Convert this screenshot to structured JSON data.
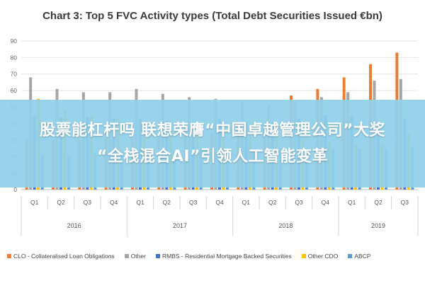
{
  "chart_data": {
    "type": "bar",
    "title": "Chart 3: Top 5 FVC Activity types (Total Debt Securities Issued €bn)",
    "categories": [
      "Q1",
      "Q2",
      "Q3",
      "Q4",
      "Q1",
      "Q2",
      "Q3",
      "Q4",
      "Q1",
      "Q2",
      "Q3",
      "Q4",
      "Q1",
      "Q2",
      "Q3"
    ],
    "groups": [
      {
        "label": "2016",
        "count": 4
      },
      {
        "label": "2017",
        "count": 4
      },
      {
        "label": "2018",
        "count": 4
      },
      {
        "label": "2019",
        "count": 3
      }
    ],
    "ylim": [
      0,
      90
    ],
    "yticks": [
      0,
      10,
      20,
      30,
      40,
      50,
      60,
      70,
      80,
      90
    ],
    "grid": true,
    "legend_position": "bottom",
    "series": [
      {
        "name": "CLO - Collateralised Loan Obligations",
        "color": "#ed7d31",
        "values": [
          30,
          30,
          30,
          31,
          31,
          32,
          33,
          34,
          36,
          38,
          57,
          61,
          68,
          76,
          83
        ]
      },
      {
        "name": "Other",
        "color": "#a5a5a5",
        "values": [
          68,
          61,
          59,
          59,
          61,
          58,
          56,
          55,
          53,
          51,
          53,
          56,
          59,
          66,
          67
        ]
      },
      {
        "name": "RMBS - Residential Mortgage Backed Securities",
        "color": "#4472c4",
        "values": [
          45,
          44,
          44,
          43,
          43,
          42,
          41,
          43,
          41,
          41,
          43,
          45,
          45,
          41,
          43
        ]
      },
      {
        "name": "Other CDO",
        "color": "#ffc000",
        "values": [
          55,
          48,
          45,
          43,
          41,
          38,
          35,
          34,
          33,
          32,
          30,
          29,
          27,
          28,
          34
        ]
      },
      {
        "name": "ABCP",
        "color": "#5b9bd5",
        "values": [
          21,
          20,
          22,
          23,
          23,
          23,
          24,
          24,
          24,
          25,
          25,
          25,
          25,
          25,
          26
        ]
      }
    ]
  },
  "banner": {
    "line1": "股票能杠杆吗 联想荣膺“中国卓越管理公司”大奖",
    "line2": "“全栈混合AI”引领人工智能变革",
    "color": "#8fd0ea"
  }
}
